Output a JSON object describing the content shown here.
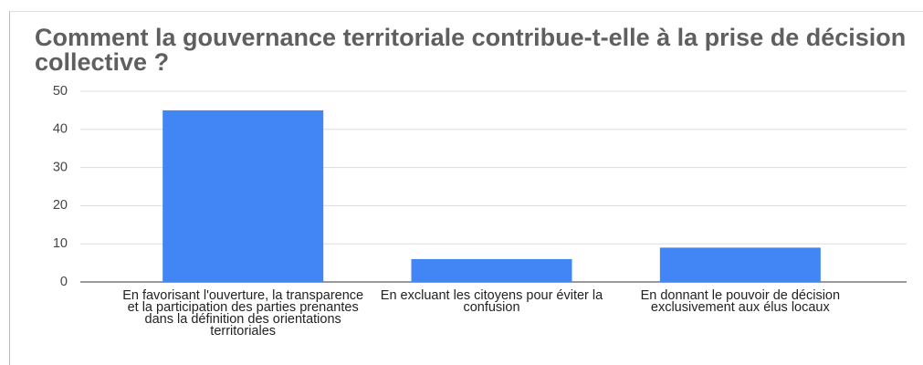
{
  "chart_data": {
    "type": "bar",
    "title": "Comment la gouvernance territoriale contribue-t-elle à la prise de décision collective ?",
    "categories": [
      "En favorisant l'ouverture, la transparence et la participation des parties prenantes dans la définition des orientations territoriales",
      "En excluant les citoyens pour éviter la confusion",
      "En donnant le pouvoir de décision exclusivement aux élus locaux"
    ],
    "values": [
      45,
      6,
      9
    ],
    "color": "#4285f4",
    "ylim": [
      0,
      50
    ],
    "yticks": [
      0,
      10,
      20,
      30,
      40,
      50
    ],
    "grid": true
  }
}
